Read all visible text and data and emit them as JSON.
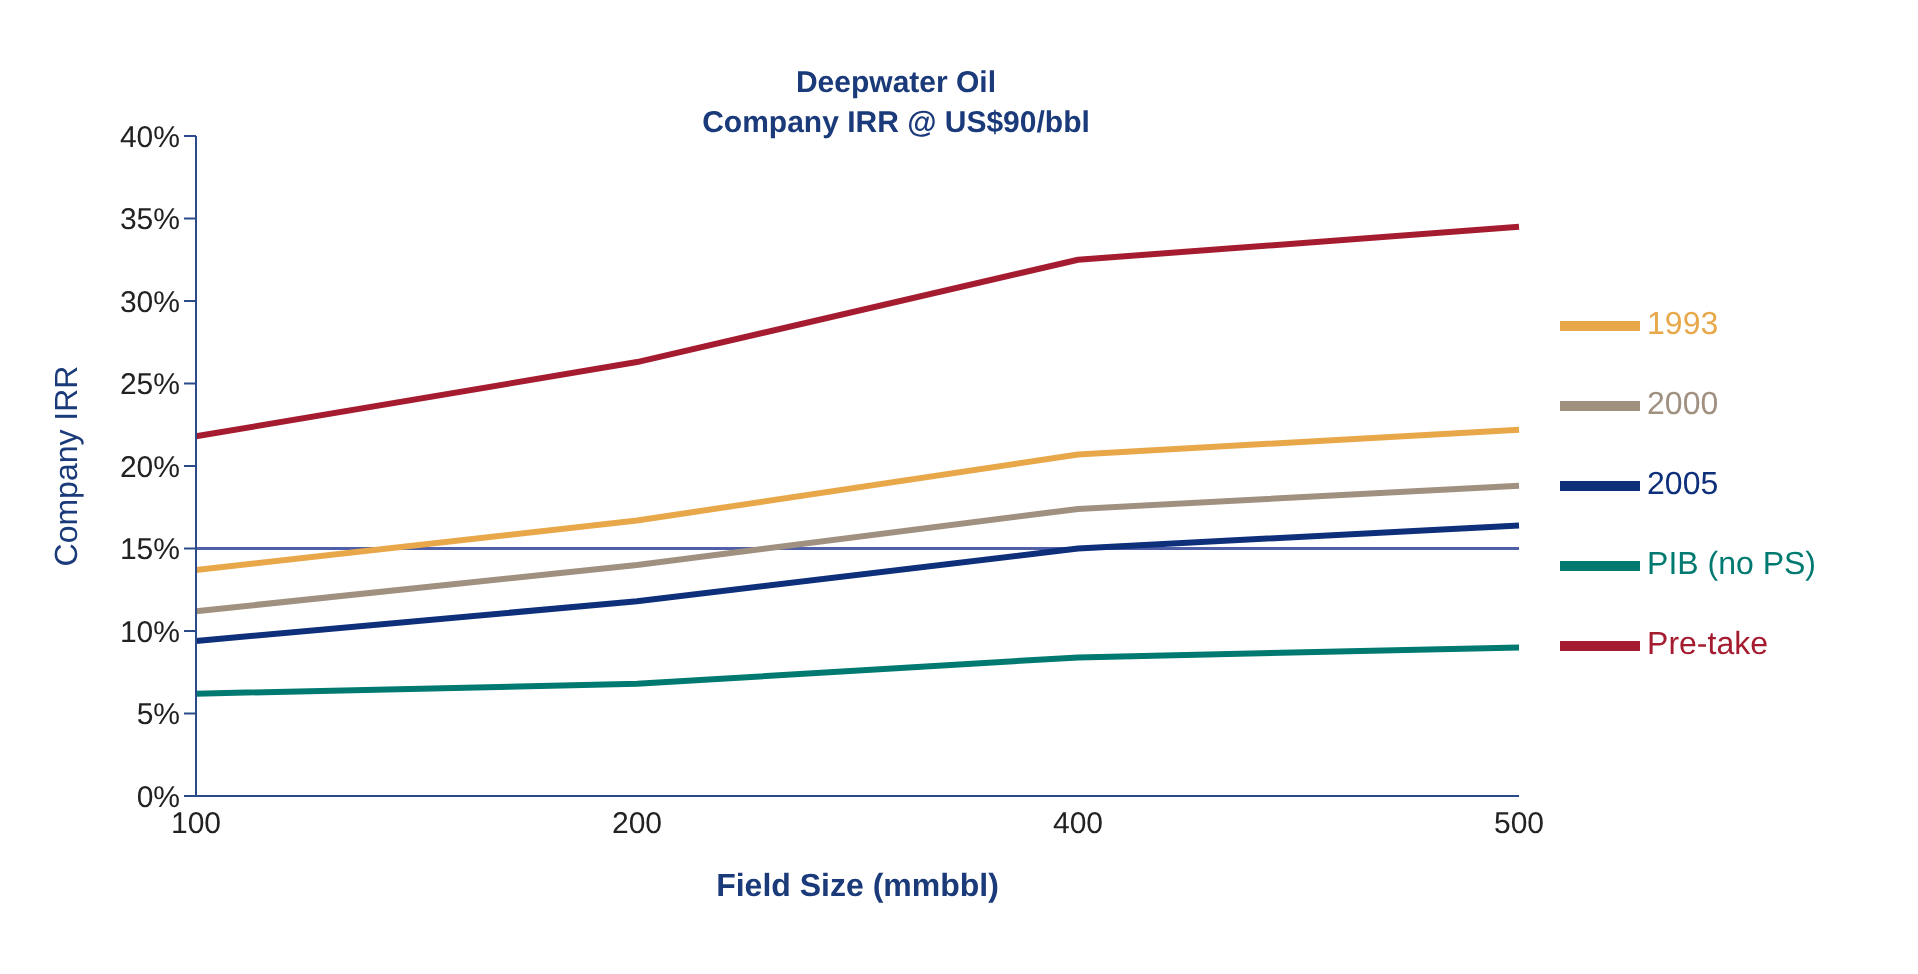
{
  "chart_data": {
    "type": "line",
    "title": "Deepwater Oil",
    "subtitle": "Company IRR @ US$90/bbl",
    "xlabel": "Field Size (mmbbl)",
    "ylabel": "Company IRR",
    "categories": [
      "100",
      "200",
      "400",
      "500"
    ],
    "series": [
      {
        "name": "Pre-take",
        "color": "#a51c30",
        "values": [
          21.8,
          26.3,
          32.5,
          34.5
        ]
      },
      {
        "name": "1993",
        "color": "#e8a84a",
        "values": [
          13.7,
          16.7,
          20.7,
          22.2
        ]
      },
      {
        "name": "2000",
        "color": "#a09080",
        "values": [
          11.2,
          14.0,
          17.4,
          18.8
        ]
      },
      {
        "name": "2005",
        "color": "#0e2f7a",
        "values": [
          9.4,
          11.8,
          15.0,
          16.4
        ]
      },
      {
        "name": "PIB (no PS)",
        "color": "#007a70",
        "values": [
          6.2,
          6.8,
          8.4,
          9.0
        ]
      }
    ],
    "ylim": [
      0,
      40
    ],
    "yticks": [
      {
        "value": 0,
        "label": "0%"
      },
      {
        "value": 5,
        "label": "5%"
      },
      {
        "value": 10,
        "label": "10%"
      },
      {
        "value": 15,
        "label": "15%"
      },
      {
        "value": 20,
        "label": "20%"
      },
      {
        "value": 25,
        "label": "25%"
      },
      {
        "value": 30,
        "label": "30%"
      },
      {
        "value": 35,
        "label": "35%"
      },
      {
        "value": 40,
        "label": "40%"
      }
    ],
    "ref_lines": [
      {
        "axis": "y",
        "value": 15,
        "color": "#5060a8"
      }
    ],
    "grid": false,
    "legend": "right",
    "marker": "none",
    "line_style": "solid"
  }
}
